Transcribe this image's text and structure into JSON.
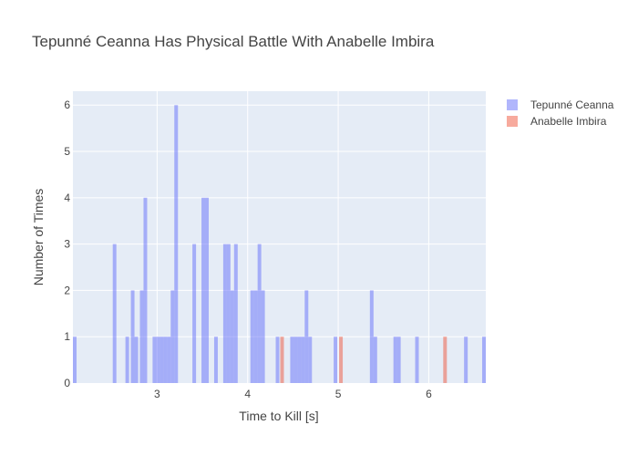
{
  "chart_data": {
    "type": "histogram",
    "title": "Tepunné Ceanna Has Physical Battle With Anabelle Imbira",
    "xlabel": "Time to Kill [s]",
    "ylabel": "Number of Times",
    "xlim": [
      2.07,
      6.63
    ],
    "ylim": [
      0,
      6.3
    ],
    "x_ticks": [
      3,
      4,
      5,
      6
    ],
    "y_ticks": [
      0,
      1,
      2,
      3,
      4,
      5,
      6
    ],
    "grid": true,
    "legend_position": "top-right",
    "bin_width": 0.04,
    "series": [
      {
        "name": "Tepunné Ceanna",
        "color": "#636efa",
        "opacity": 0.5,
        "bins": [
          [
            2.07,
            1
          ],
          [
            2.51,
            3
          ],
          [
            2.65,
            1
          ],
          [
            2.71,
            2
          ],
          [
            2.75,
            1
          ],
          [
            2.81,
            2
          ],
          [
            2.85,
            4
          ],
          [
            2.95,
            1
          ],
          [
            2.99,
            1
          ],
          [
            3.03,
            1
          ],
          [
            3.07,
            1
          ],
          [
            3.11,
            1
          ],
          [
            3.15,
            2
          ],
          [
            3.19,
            6
          ],
          [
            3.39,
            3
          ],
          [
            3.49,
            4
          ],
          [
            3.53,
            4
          ],
          [
            3.63,
            1
          ],
          [
            3.73,
            3
          ],
          [
            3.77,
            3
          ],
          [
            3.81,
            2
          ],
          [
            3.85,
            3
          ],
          [
            4.03,
            2
          ],
          [
            4.07,
            2
          ],
          [
            4.11,
            3
          ],
          [
            4.15,
            2
          ],
          [
            4.31,
            1
          ],
          [
            4.47,
            1
          ],
          [
            4.51,
            1
          ],
          [
            4.55,
            1
          ],
          [
            4.59,
            1
          ],
          [
            4.63,
            2
          ],
          [
            4.67,
            1
          ],
          [
            4.95,
            1
          ],
          [
            5.35,
            2
          ],
          [
            5.39,
            1
          ],
          [
            5.61,
            1
          ],
          [
            5.65,
            1
          ],
          [
            5.85,
            1
          ],
          [
            6.39,
            1
          ],
          [
            6.59,
            1
          ]
        ]
      },
      {
        "name": "Anabelle Imbira",
        "color": "#ef553b",
        "opacity": 0.5,
        "bins": [
          [
            4.36,
            1
          ],
          [
            5.01,
            1
          ],
          [
            6.16,
            1
          ]
        ]
      }
    ]
  }
}
